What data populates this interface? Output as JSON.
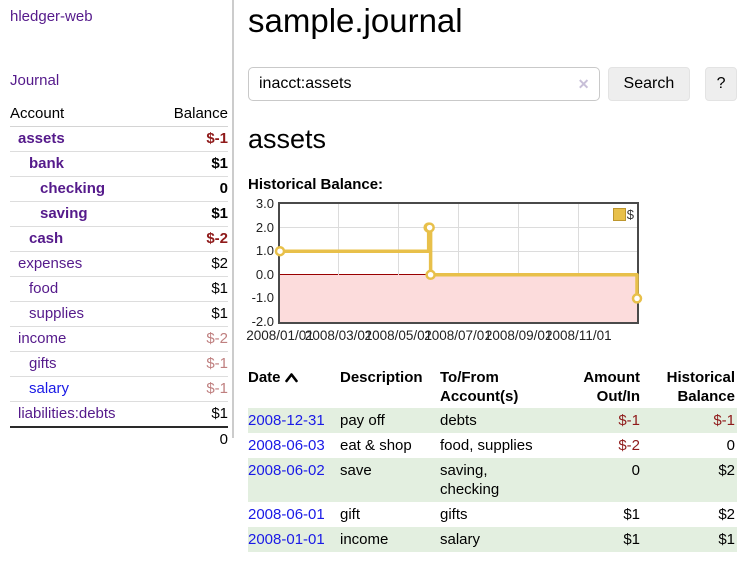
{
  "sidebar": {
    "brand": "hledger-web",
    "nav": {
      "journal_label": "Journal"
    },
    "accounts_table": {
      "headers": [
        "Account",
        "Balance"
      ],
      "rows": [
        {
          "account": "assets",
          "balance": "$-1",
          "indent": 1,
          "bold": true,
          "negative": "strong",
          "link": "visited"
        },
        {
          "account": "bank",
          "balance": "$1",
          "indent": 2,
          "bold": true,
          "negative": "none",
          "link": "visited"
        },
        {
          "account": "checking",
          "balance": "0",
          "indent": 3,
          "bold": true,
          "negative": "none",
          "link": "visited"
        },
        {
          "account": "saving",
          "balance": "$1",
          "indent": 3,
          "bold": true,
          "negative": "none",
          "link": "visited"
        },
        {
          "account": "cash",
          "balance": "$-2",
          "indent": 2,
          "bold": true,
          "negative": "strong",
          "link": "visited"
        },
        {
          "account": "expenses",
          "balance": "$2",
          "indent": 1,
          "bold": false,
          "negative": "none",
          "link": "visited"
        },
        {
          "account": "food",
          "balance": "$1",
          "indent": 2,
          "bold": false,
          "negative": "none",
          "link": "visited"
        },
        {
          "account": "supplies",
          "balance": "$1",
          "indent": 2,
          "bold": false,
          "negative": "none",
          "link": "visited"
        },
        {
          "account": "income",
          "balance": "$-2",
          "indent": 1,
          "bold": false,
          "negative": "soft",
          "link": "visited"
        },
        {
          "account": "gifts",
          "balance": "$-1",
          "indent": 2,
          "bold": false,
          "negative": "soft",
          "link": "visited"
        },
        {
          "account": "salary",
          "balance": "$-1",
          "indent": 2,
          "bold": false,
          "negative": "soft",
          "link": "unvisited"
        },
        {
          "account": "liabilities:debts",
          "balance": "$1",
          "indent": 1,
          "bold": false,
          "negative": "none",
          "link": "visited"
        }
      ],
      "total": "0"
    }
  },
  "header": {
    "title": "sample.journal"
  },
  "search": {
    "value": "inacct:assets",
    "clear_icon": "✕",
    "button_label": "Search",
    "help_label": "?"
  },
  "account_page": {
    "title": "assets",
    "chart_label": "Historical Balance:"
  },
  "chart_data": {
    "type": "line",
    "step": true,
    "title": "Historical Balance",
    "series": [
      {
        "name": "$",
        "points": [
          {
            "x": "2008-01-01",
            "y": 1
          },
          {
            "x": "2008-06-01",
            "y": 2
          },
          {
            "x": "2008-06-02",
            "y": 2
          },
          {
            "x": "2008-06-03",
            "y": 0
          },
          {
            "x": "2008-12-31",
            "y": -1
          }
        ]
      }
    ],
    "x_range": [
      "2008-01-01",
      "2008-12-31"
    ],
    "x_ticks": [
      "2008/01/01",
      "2008/03/01",
      "2008/05/01",
      "2008/07/01",
      "2008/09/01",
      "2008/11/01"
    ],
    "y_ticks": [
      3.0,
      2.0,
      1.0,
      0.0,
      -1.0,
      -2.0
    ],
    "ylim": [
      -2,
      3
    ],
    "grid": true,
    "legend": {
      "label": "$",
      "position": "top-right"
    }
  },
  "register_table": {
    "headers": {
      "date": "Date",
      "description": "Description",
      "accounts": "To/From Account(s)",
      "amount": "Amount Out/In",
      "balance": "Historical Balance"
    },
    "sort_icon": "chevron-up",
    "rows": [
      {
        "date": "2008-12-31",
        "description": "pay off",
        "accounts": "debts",
        "amount": "$-1",
        "amount_negative": true,
        "balance": "$-1",
        "balance_negative": true
      },
      {
        "date": "2008-06-03",
        "description": "eat & shop",
        "accounts": "food, supplies",
        "amount": "$-2",
        "amount_negative": true,
        "balance": "0",
        "balance_negative": false
      },
      {
        "date": "2008-06-02",
        "description": "save",
        "accounts": "saving, checking",
        "amount": "0",
        "amount_negative": false,
        "balance": "$2",
        "balance_negative": false
      },
      {
        "date": "2008-06-01",
        "description": "gift",
        "accounts": "gifts",
        "amount": "$1",
        "amount_negative": false,
        "balance": "$2",
        "balance_negative": false
      },
      {
        "date": "2008-01-01",
        "description": "income",
        "accounts": "salary",
        "amount": "$1",
        "amount_negative": false,
        "balance": "$1",
        "balance_negative": false
      }
    ]
  },
  "colors": {
    "link_visited_purple": "#551a8b",
    "link_unvisited_blue": "#1a1ae6",
    "negative_strong_red": "#8f1a1a",
    "negative_soft_red": "#bf7f7f",
    "row_stripe_green": "#e3efe0",
    "chart_line_gold": "#e8c04a",
    "chart_negative_region_pink": "#fcdcdc",
    "chart_zero_line_red": "#990000",
    "chart_grid_gray": "#dcdcdc",
    "chart_border_gray": "#4a4a4a"
  }
}
